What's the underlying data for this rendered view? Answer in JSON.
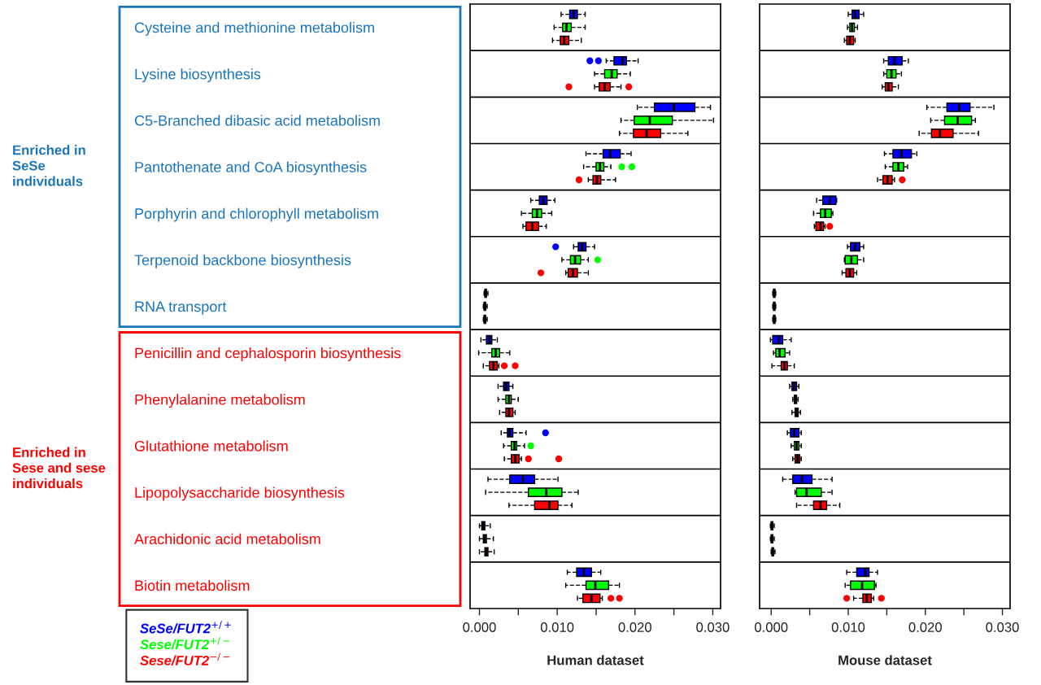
{
  "chart_data": [
    {
      "type": "box",
      "orientation": "horizontal",
      "xlabel": "Human dataset",
      "categories": [
        "Cysteine and methionine metabolism",
        "Lysine biosynthesis",
        "C5-Branched dibasic acid metabolism",
        "Pantothenate and CoA biosynthesis",
        "Porphyrin and chlorophyll metabolism",
        "Terpenoid backbone biosynthesis",
        "RNA transport",
        "Penicillin and cephalosporin biosynthesis",
        "Phenylalanine metabolism",
        "Glutathione metabolism",
        "Lipopolysaccharide biosynthesis",
        "Arachidonic acid metabolism",
        "Biotin metabolism"
      ],
      "xlim": [
        -0.0012,
        0.031
      ],
      "xticks": [
        {
          "value": 0,
          "label": "0.000"
        },
        {
          "value": 0.005,
          "label": null
        },
        {
          "value": 0.01,
          "label": "0.010"
        },
        {
          "value": 0.015,
          "label": null
        },
        {
          "value": 0.02,
          "label": "0.020"
        },
        {
          "value": 0.025,
          "label": null
        },
        {
          "value": 0.03,
          "label": "0.030"
        }
      ],
      "legend": "bottom left",
      "annotations": [
        "Enriched in\nSeSe\nindividuals",
        "Enriched in\nSese and sese\nindividuals"
      ],
      "series": [
        {
          "name": "SeSe/FUT2$^{+/+}$",
          "color": "#0000ff",
          "boxes": [
            {
              "low": 0.0105,
              "q1": 0.0116,
              "median": 0.0121,
              "q3": 0.0126,
              "high": 0.0136
            },
            {
              "low": 0.0163,
              "q1": 0.0173,
              "median": 0.0184,
              "q3": 0.0189,
              "high": 0.0204,
              "outliers": [
                0.0142,
                0.0153
              ]
            },
            {
              "low": 0.0203,
              "q1": 0.0225,
              "median": 0.025,
              "q3": 0.0277,
              "high": 0.0297
            },
            {
              "low": 0.0137,
              "q1": 0.0159,
              "median": 0.0168,
              "q3": 0.0181,
              "high": 0.0195
            },
            {
              "low": 0.0066,
              "q1": 0.0077,
              "median": 0.0082,
              "q3": 0.0087,
              "high": 0.0097
            },
            {
              "low": 0.0121,
              "q1": 0.0127,
              "median": 0.0132,
              "q3": 0.0137,
              "high": 0.0148,
              "outliers": [
                0.0098
              ]
            },
            {
              "low": 0.0006,
              "q1": 0.0007,
              "median": 0.0008,
              "q3": 0.0009,
              "high": 0.0011
            },
            {
              "low": 0.0002,
              "q1": 0.0009,
              "median": 0.0013,
              "q3": 0.0016,
              "high": 0.0023
            },
            {
              "low": 0.0024,
              "q1": 0.0031,
              "median": 0.0034,
              "q3": 0.0038,
              "high": 0.0043
            },
            {
              "low": 0.0028,
              "q1": 0.0036,
              "median": 0.0039,
              "q3": 0.0043,
              "high": 0.006,
              "outliers": [
                0.0085
              ]
            },
            {
              "low": 0.0011,
              "q1": 0.0039,
              "median": 0.0056,
              "q3": 0.0071,
              "high": 0.0101
            },
            {
              "low": 0.0,
              "q1": 0.0003,
              "median": 0.0005,
              "q3": 0.0007,
              "high": 0.0014
            },
            {
              "low": 0.0113,
              "q1": 0.0125,
              "median": 0.0134,
              "q3": 0.0144,
              "high": 0.0156
            }
          ]
        },
        {
          "name": "Sese/FUT2$^{+/−}$",
          "color": "#00ff00",
          "boxes": [
            {
              "low": 0.0096,
              "q1": 0.0107,
              "median": 0.0112,
              "q3": 0.0118,
              "high": 0.0136
            },
            {
              "low": 0.0148,
              "q1": 0.0161,
              "median": 0.017,
              "q3": 0.0177,
              "high": 0.0194
            },
            {
              "low": 0.0182,
              "q1": 0.0199,
              "median": 0.0219,
              "q3": 0.0248,
              "high": 0.0301
            },
            {
              "low": 0.0134,
              "q1": 0.015,
              "median": 0.0155,
              "q3": 0.016,
              "high": 0.0169,
              "outliers": [
                0.0183,
                0.0196
              ]
            },
            {
              "low": 0.0054,
              "q1": 0.0068,
              "median": 0.0074,
              "q3": 0.008,
              "high": 0.0093
            },
            {
              "low": 0.0106,
              "q1": 0.0117,
              "median": 0.0123,
              "q3": 0.013,
              "high": 0.014,
              "outliers": [
                0.0152
              ]
            },
            {
              "low": 0.0005,
              "q1": 0.0006,
              "median": 0.0007,
              "q3": 0.0008,
              "high": 0.001
            },
            {
              "low": -0.0001,
              "q1": 0.0016,
              "median": 0.0021,
              "q3": 0.0026,
              "high": 0.0039
            },
            {
              "low": 0.0024,
              "q1": 0.0034,
              "median": 0.0038,
              "q3": 0.0041,
              "high": 0.005
            },
            {
              "low": 0.0031,
              "q1": 0.0041,
              "median": 0.0045,
              "q3": 0.0048,
              "high": 0.0058,
              "outliers": [
                0.0066
              ]
            },
            {
              "low": 0.0008,
              "q1": 0.0063,
              "median": 0.0086,
              "q3": 0.0106,
              "high": 0.0127
            },
            {
              "low": 0.0,
              "q1": 0.0005,
              "median": 0.0007,
              "q3": 0.0009,
              "high": 0.0018
            },
            {
              "low": 0.0111,
              "q1": 0.0137,
              "median": 0.0149,
              "q3": 0.0166,
              "high": 0.018
            }
          ]
        },
        {
          "name": "Sese/FUT2$^{−/−}$",
          "color": "#ff0000",
          "boxes": [
            {
              "low": 0.0094,
              "q1": 0.0104,
              "median": 0.0109,
              "q3": 0.0115,
              "high": 0.0131
            },
            {
              "low": 0.0148,
              "q1": 0.0154,
              "median": 0.0161,
              "q3": 0.0168,
              "high": 0.0182,
              "outliers": [
                0.0115,
                0.0192
              ]
            },
            {
              "low": 0.018,
              "q1": 0.0198,
              "median": 0.0215,
              "q3": 0.0233,
              "high": 0.0268
            },
            {
              "low": 0.014,
              "q1": 0.0146,
              "median": 0.0151,
              "q3": 0.0156,
              "high": 0.0175,
              "outliers": [
                0.0128
              ]
            },
            {
              "low": 0.0056,
              "q1": 0.006,
              "median": 0.0068,
              "q3": 0.0076,
              "high": 0.0086
            },
            {
              "low": 0.0111,
              "q1": 0.0114,
              "median": 0.012,
              "q3": 0.0126,
              "high": 0.014,
              "outliers": [
                0.0079
              ]
            },
            {
              "low": 0.0005,
              "q1": 0.0006,
              "median": 0.0007,
              "q3": 0.0008,
              "high": 0.001
            },
            {
              "low": 0.0005,
              "q1": 0.0013,
              "median": 0.0018,
              "q3": 0.0023,
              "high": 0.0025,
              "outliers": [
                0.0032,
                0.0046
              ]
            },
            {
              "low": 0.0026,
              "q1": 0.0034,
              "median": 0.0038,
              "q3": 0.0043,
              "high": 0.0046
            },
            {
              "low": 0.0032,
              "q1": 0.0041,
              "median": 0.0046,
              "q3": 0.0051,
              "high": 0.0054,
              "outliers": [
                0.0063,
                0.0102
              ]
            },
            {
              "low": 0.0038,
              "q1": 0.0071,
              "median": 0.009,
              "q3": 0.0101,
              "high": 0.0119
            },
            {
              "low": 0.0,
              "q1": 0.0007,
              "median": 0.0009,
              "q3": 0.0011,
              "high": 0.0019
            },
            {
              "low": 0.0126,
              "q1": 0.0133,
              "median": 0.0144,
              "q3": 0.0155,
              "high": 0.0158,
              "outliers": [
                0.0169,
                0.018
              ]
            }
          ]
        }
      ]
    },
    {
      "type": "box",
      "orientation": "horizontal",
      "xlabel": "Mouse dataset",
      "tick_labels": "x",
      "categories": [
        null,
        null,
        null,
        null,
        null,
        null,
        null,
        null,
        null,
        null,
        null,
        null,
        null
      ],
      "xlim": [
        -0.0015,
        0.031
      ],
      "xticks": [
        {
          "value": 0,
          "label": "0.000"
        },
        {
          "value": 0.005,
          "label": null
        },
        {
          "value": 0.01,
          "label": "0.010"
        },
        {
          "value": 0.015,
          "label": null
        },
        {
          "value": 0.02,
          "label": "0.020"
        },
        {
          "value": 0.025,
          "label": null
        },
        {
          "value": 0.03,
          "label": "0.030"
        }
      ],
      "series": [
        {
          "color": "#0000ff",
          "boxes": [
            {
              "low": 0.01,
              "q1": 0.0105,
              "median": 0.0109,
              "q3": 0.0114,
              "high": 0.012
            },
            {
              "low": 0.0146,
              "q1": 0.0152,
              "median": 0.016,
              "q3": 0.017,
              "high": 0.0178
            },
            {
              "low": 0.0202,
              "q1": 0.0228,
              "median": 0.0244,
              "q3": 0.0258,
              "high": 0.0289
            },
            {
              "low": 0.0147,
              "q1": 0.0158,
              "median": 0.0169,
              "q3": 0.0182,
              "high": 0.0189
            },
            {
              "low": 0.0059,
              "q1": 0.0067,
              "median": 0.0076,
              "q3": 0.0084,
              "high": 0.0085
            },
            {
              "low": 0.0099,
              "q1": 0.0103,
              "median": 0.0109,
              "q3": 0.0115,
              "high": 0.012
            },
            {
              "low": 0.0002,
              "q1": 0.0003,
              "median": 0.0004,
              "q3": 0.0005,
              "high": 0.0006
            },
            {
              "low": -0.0001,
              "q1": 0.0002,
              "median": 0.001,
              "q3": 0.0015,
              "high": 0.0026
            },
            {
              "low": 0.0024,
              "q1": 0.0027,
              "median": 0.003,
              "q3": 0.0033,
              "high": 0.0036
            },
            {
              "low": 0.0021,
              "q1": 0.0025,
              "median": 0.003,
              "q3": 0.0036,
              "high": 0.0039
            },
            {
              "low": 0.0015,
              "q1": 0.0028,
              "median": 0.004,
              "q3": 0.0053,
              "high": 0.0079
            },
            {
              "low": -0.0001,
              "q1": 0.0,
              "median": 0.0001,
              "q3": 0.0002,
              "high": 0.0004
            },
            {
              "low": 0.0098,
              "q1": 0.0111,
              "median": 0.0122,
              "q3": 0.0127,
              "high": 0.0138
            }
          ]
        },
        {
          "color": "#00ff00",
          "boxes": [
            {
              "low": 0.0099,
              "q1": 0.0102,
              "median": 0.0105,
              "q3": 0.0108,
              "high": 0.0112
            },
            {
              "low": 0.0146,
              "q1": 0.015,
              "median": 0.0156,
              "q3": 0.0162,
              "high": 0.0169
            },
            {
              "low": 0.0207,
              "q1": 0.0225,
              "median": 0.0242,
              "q3": 0.026,
              "high": 0.0265
            },
            {
              "low": 0.0148,
              "q1": 0.0158,
              "median": 0.0165,
              "q3": 0.0172,
              "high": 0.0177
            },
            {
              "low": 0.0055,
              "q1": 0.0064,
              "median": 0.007,
              "q3": 0.0078,
              "high": 0.008
            },
            {
              "low": 0.0095,
              "q1": 0.0096,
              "median": 0.0104,
              "q3": 0.0112,
              "high": 0.012
            },
            {
              "low": 0.0002,
              "q1": 0.0003,
              "median": 0.0004,
              "q3": 0.0005,
              "high": 0.0006
            },
            {
              "low": 0.0003,
              "q1": 0.0006,
              "median": 0.0011,
              "q3": 0.0018,
              "high": 0.0024
            },
            {
              "low": 0.0028,
              "q1": 0.003,
              "median": 0.0031,
              "q3": 0.0033,
              "high": 0.0035
            },
            {
              "low": 0.0026,
              "q1": 0.003,
              "median": 0.0033,
              "q3": 0.0036,
              "high": 0.0039
            },
            {
              "low": 0.0031,
              "q1": 0.0033,
              "median": 0.0046,
              "q3": 0.0065,
              "high": 0.0079
            },
            {
              "low": -0.0001,
              "q1": 0.0,
              "median": 0.0001,
              "q3": 0.0002,
              "high": 0.0004
            },
            {
              "low": 0.0096,
              "q1": 0.0103,
              "median": 0.0118,
              "q3": 0.0134,
              "high": 0.0136
            }
          ]
        },
        {
          "color": "#ff0000",
          "boxes": [
            {
              "low": 0.0095,
              "q1": 0.0098,
              "median": 0.0102,
              "q3": 0.0107,
              "high": 0.0109
            },
            {
              "low": 0.0144,
              "q1": 0.0148,
              "median": 0.0152,
              "q3": 0.0157,
              "high": 0.0165
            },
            {
              "low": 0.0192,
              "q1": 0.0208,
              "median": 0.0219,
              "q3": 0.0236,
              "high": 0.0269
            },
            {
              "low": 0.0138,
              "q1": 0.0145,
              "median": 0.0151,
              "q3": 0.0157,
              "high": 0.016,
              "outliers": [
                0.017
              ]
            },
            {
              "low": 0.0056,
              "q1": 0.0058,
              "median": 0.0064,
              "q3": 0.0068,
              "high": 0.007,
              "outliers": [
                0.0076
              ]
            },
            {
              "low": 0.0092,
              "q1": 0.0097,
              "median": 0.0102,
              "q3": 0.0107,
              "high": 0.0111
            },
            {
              "low": 0.0002,
              "q1": 0.0003,
              "median": 0.0004,
              "q3": 0.0005,
              "high": 0.0006
            },
            {
              "low": 0.0001,
              "q1": 0.0013,
              "median": 0.0017,
              "q3": 0.0021,
              "high": 0.003
            },
            {
              "low": 0.0027,
              "q1": 0.0031,
              "median": 0.0033,
              "q3": 0.0035,
              "high": 0.0038
            },
            {
              "low": 0.0028,
              "q1": 0.0031,
              "median": 0.0034,
              "q3": 0.0037,
              "high": 0.0039
            },
            {
              "low": 0.0033,
              "q1": 0.0055,
              "median": 0.0064,
              "q3": 0.0072,
              "high": 0.0089
            },
            {
              "low": 0.0,
              "q1": 0.0001,
              "median": 0.0002,
              "q3": 0.0003,
              "high": 0.0005
            },
            {
              "low": 0.0107,
              "q1": 0.0119,
              "median": 0.0124,
              "q3": 0.013,
              "high": 0.0133,
              "outliers": [
                0.0098,
                0.0143
              ]
            }
          ]
        }
      ]
    }
  ]
}
